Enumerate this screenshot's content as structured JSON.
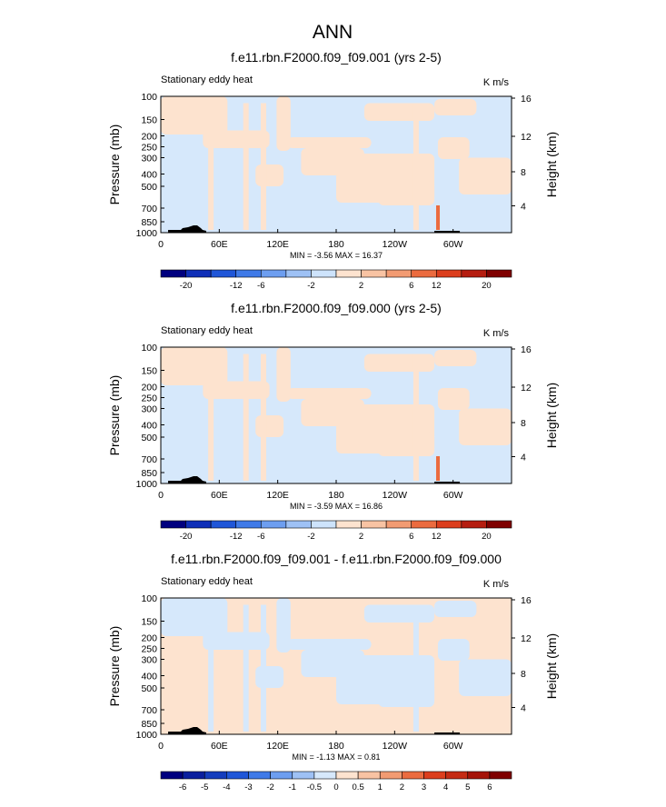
{
  "figure": {
    "title": "ANN"
  },
  "chart_data": [
    {
      "type": "heatmap",
      "title": "f.e11.rbn.F2000.f09_f09.001 (yrs 2-5)",
      "left_label": "Stationary eddy heat",
      "units": "K m/s",
      "ylabel": "Pressure (mb)",
      "ylabel_right": "Height (km)",
      "y_ticks": [
        "100",
        "150",
        "200",
        "250",
        "300",
        "400",
        "500",
        "700",
        "850",
        "1000"
      ],
      "y_right_ticks": [
        "16",
        "12",
        "8",
        "4"
      ],
      "x_ticks": [
        "0",
        "60E",
        "120E",
        "180",
        "120W",
        "60W"
      ],
      "stats": "MIN =  -3.56  MAX =  16.37",
      "colorbar_labels": [
        "-20",
        "-12",
        "-6",
        "-2",
        "2",
        "6",
        "12",
        "20"
      ],
      "colorbar_colors": [
        "#00007f",
        "#0f2fb8",
        "#1f56d8",
        "#3f7ae8",
        "#6d9ef0",
        "#9ec1f5",
        "#cde3fb",
        "#fde3cf",
        "#f8c3a3",
        "#f29b72",
        "#eb6b3f",
        "#dc3e1d",
        "#b51d10",
        "#7f0000"
      ],
      "light_colors": {
        "negative": "#d6e8fb",
        "positive": "#fde3cf"
      }
    },
    {
      "type": "heatmap",
      "title": "f.e11.rbn.F2000.f09_f09.000 (yrs 2-5)",
      "left_label": "Stationary eddy heat",
      "units": "K m/s",
      "ylabel": "Pressure (mb)",
      "ylabel_right": "Height (km)",
      "y_ticks": [
        "100",
        "150",
        "200",
        "250",
        "300",
        "400",
        "500",
        "700",
        "850",
        "1000"
      ],
      "y_right_ticks": [
        "16",
        "12",
        "8",
        "4"
      ],
      "x_ticks": [
        "0",
        "60E",
        "120E",
        "180",
        "120W",
        "60W"
      ],
      "stats": "MIN =  -3.59  MAX =  16.86",
      "colorbar_labels": [
        "-20",
        "-12",
        "-6",
        "-2",
        "2",
        "6",
        "12",
        "20"
      ],
      "colorbar_colors": [
        "#00007f",
        "#0f2fb8",
        "#1f56d8",
        "#3f7ae8",
        "#6d9ef0",
        "#9ec1f5",
        "#cde3fb",
        "#fde3cf",
        "#f8c3a3",
        "#f29b72",
        "#eb6b3f",
        "#dc3e1d",
        "#b51d10",
        "#7f0000"
      ],
      "light_colors": {
        "negative": "#d6e8fb",
        "positive": "#fde3cf"
      }
    },
    {
      "type": "heatmap",
      "title": "f.e11.rbn.F2000.f09_f09.001 - f.e11.rbn.F2000.f09_f09.000",
      "left_label": "Stationary eddy heat",
      "units": "K m/s",
      "ylabel": "Pressure (mb)",
      "ylabel_right": "Height (km)",
      "y_ticks": [
        "100",
        "150",
        "200",
        "250",
        "300",
        "400",
        "500",
        "700",
        "850",
        "1000"
      ],
      "y_right_ticks": [
        "16",
        "12",
        "8",
        "4"
      ],
      "x_ticks": [
        "0",
        "60E",
        "120E",
        "180",
        "120W",
        "60W"
      ],
      "stats": "MIN =  -1.13  MAX =   0.81",
      "colorbar_labels": [
        "-6",
        "-5",
        "-4",
        "-3",
        "-2",
        "-1",
        "-0.5",
        "0",
        "0.5",
        "1",
        "2",
        "3",
        "4",
        "5",
        "6"
      ],
      "colorbar_colors": [
        "#00007f",
        "#0a1f9e",
        "#143dbd",
        "#1f56d8",
        "#3f7ae8",
        "#6d9ef0",
        "#9ec1f5",
        "#d6e8fb",
        "#fde3cf",
        "#f8c3a3",
        "#f29b72",
        "#eb6b3f",
        "#dc3e1d",
        "#c52b14",
        "#a51409",
        "#7f0000"
      ],
      "light_colors": {
        "negative": "#d6e8fb",
        "positive": "#fde3cf"
      }
    }
  ]
}
